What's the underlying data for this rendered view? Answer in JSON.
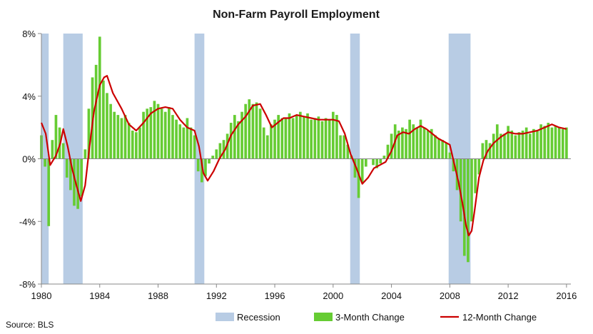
{
  "chart_data": {
    "type": "bar+line",
    "title": "Non-Farm Payroll Employment",
    "source": "Source: BLS",
    "xlim": [
      1980,
      2016.3
    ],
    "ylim": [
      -8,
      8
    ],
    "x_ticks": [
      1980,
      1984,
      1988,
      1992,
      1996,
      2000,
      2004,
      2008,
      2012,
      2016
    ],
    "y_ticks": [
      8,
      4,
      0,
      -4,
      -8
    ],
    "y_tick_labels": [
      "8%",
      "4%",
      "0%",
      "-4%",
      "-8%"
    ],
    "legend": [
      "Recession",
      "3-Month Change",
      "12-Month Change"
    ],
    "legend_position": "bottom-right",
    "colors": {
      "recession": "#b8cce4",
      "bars": "#66cc33",
      "line": "#cc0000"
    },
    "recessions": [
      [
        1980.0,
        1980.5
      ],
      [
        1981.5,
        1982.83
      ],
      [
        1990.5,
        1991.17
      ],
      [
        2001.17,
        2001.83
      ],
      [
        2007.92,
        2009.42
      ]
    ],
    "series": [
      {
        "name": "12-Month Change",
        "x": [
          1980.0,
          1980.3,
          1980.6,
          1981.0,
          1981.3,
          1981.5,
          1981.8,
          1982.1,
          1982.4,
          1982.7,
          1983.0,
          1983.3,
          1983.6,
          1984.0,
          1984.3,
          1984.5,
          1984.9,
          1985.5,
          1986.0,
          1986.5,
          1987.0,
          1987.5,
          1988.0,
          1988.5,
          1989.0,
          1989.5,
          1990.0,
          1990.5,
          1990.8,
          1991.1,
          1991.4,
          1991.8,
          1992.2,
          1992.6,
          1993.0,
          1993.5,
          1994.0,
          1994.5,
          1995.0,
          1995.4,
          1995.8,
          1996.2,
          1996.6,
          1997.0,
          1997.5,
          1998.0,
          1998.5,
          1999.0,
          1999.5,
          2000.0,
          2000.4,
          2000.8,
          2001.2,
          2001.6,
          2002.0,
          2002.4,
          2002.8,
          2003.2,
          2003.6,
          2004.0,
          2004.4,
          2004.8,
          2005.2,
          2005.6,
          2006.0,
          2006.4,
          2006.8,
          2007.2,
          2007.6,
          2008.0,
          2008.3,
          2008.6,
          2008.9,
          2009.1,
          2009.3,
          2009.5,
          2009.7,
          2010.0,
          2010.3,
          2010.6,
          2011.0,
          2011.5,
          2012.0,
          2012.5,
          2013.0,
          2013.5,
          2014.0,
          2014.5,
          2015.0,
          2015.5,
          2016.0
        ],
        "values": [
          2.3,
          1.6,
          -0.4,
          0.2,
          1.0,
          1.9,
          0.8,
          -0.6,
          -1.7,
          -2.7,
          -1.7,
          0.8,
          3.0,
          4.7,
          5.2,
          5.3,
          4.2,
          3.2,
          2.2,
          1.8,
          2.3,
          2.9,
          3.2,
          3.3,
          3.2,
          2.5,
          2.0,
          1.8,
          0.8,
          -0.9,
          -1.4,
          -0.8,
          0.0,
          0.6,
          1.5,
          2.2,
          2.7,
          3.4,
          3.5,
          2.8,
          2.0,
          2.3,
          2.6,
          2.6,
          2.8,
          2.7,
          2.6,
          2.5,
          2.5,
          2.5,
          2.4,
          1.6,
          0.3,
          -0.6,
          -1.6,
          -1.2,
          -0.6,
          -0.4,
          -0.2,
          0.5,
          1.5,
          1.7,
          1.6,
          1.9,
          2.1,
          1.9,
          1.6,
          1.3,
          1.1,
          0.9,
          -0.3,
          -1.5,
          -3.0,
          -4.2,
          -4.9,
          -4.6,
          -3.3,
          -1.2,
          -0.1,
          0.5,
          1.0,
          1.4,
          1.7,
          1.6,
          1.6,
          1.7,
          1.8,
          2.0,
          2.2,
          2.0,
          1.9
        ]
      },
      {
        "name": "3-Month Change",
        "x": [
          1980.0,
          1980.25,
          1980.5,
          1980.75,
          1981.0,
          1981.25,
          1981.5,
          1981.75,
          1982.0,
          1982.25,
          1982.5,
          1982.75,
          1983.0,
          1983.25,
          1983.5,
          1983.75,
          1984.0,
          1984.25,
          1984.5,
          1984.75,
          1985.0,
          1985.25,
          1985.5,
          1985.75,
          1986.0,
          1986.25,
          1986.5,
          1986.75,
          1987.0,
          1987.25,
          1987.5,
          1987.75,
          1988.0,
          1988.25,
          1988.5,
          1988.75,
          1989.0,
          1989.25,
          1989.5,
          1989.75,
          1990.0,
          1990.25,
          1990.5,
          1990.75,
          1991.0,
          1991.25,
          1991.5,
          1991.75,
          1992.0,
          1992.25,
          1992.5,
          1992.75,
          1993.0,
          1993.25,
          1993.5,
          1993.75,
          1994.0,
          1994.25,
          1994.5,
          1994.75,
          1995.0,
          1995.25,
          1995.5,
          1995.75,
          1996.0,
          1996.25,
          1996.5,
          1996.75,
          1997.0,
          1997.25,
          1997.5,
          1997.75,
          1998.0,
          1998.25,
          1998.5,
          1998.75,
          1999.0,
          1999.25,
          1999.5,
          1999.75,
          2000.0,
          2000.25,
          2000.5,
          2000.75,
          2001.0,
          2001.25,
          2001.5,
          2001.75,
          2002.0,
          2002.25,
          2002.5,
          2002.75,
          2003.0,
          2003.25,
          2003.5,
          2003.75,
          2004.0,
          2004.25,
          2004.5,
          2004.75,
          2005.0,
          2005.25,
          2005.5,
          2005.75,
          2006.0,
          2006.25,
          2006.5,
          2006.75,
          2007.0,
          2007.25,
          2007.5,
          2007.75,
          2008.0,
          2008.25,
          2008.5,
          2008.75,
          2009.0,
          2009.25,
          2009.5,
          2009.75,
          2010.0,
          2010.25,
          2010.5,
          2010.75,
          2011.0,
          2011.25,
          2011.5,
          2011.75,
          2012.0,
          2012.25,
          2012.5,
          2012.75,
          2013.0,
          2013.25,
          2013.5,
          2013.75,
          2014.0,
          2014.25,
          2014.5,
          2014.75,
          2015.0,
          2015.25,
          2015.5,
          2015.75,
          2016.0
        ],
        "values": [
          1.5,
          -0.5,
          -4.3,
          1.2,
          2.8,
          2.0,
          1.0,
          -1.2,
          -2.0,
          -3.0,
          -3.2,
          -2.4,
          0.6,
          3.2,
          5.2,
          6.0,
          7.8,
          5.0,
          4.2,
          3.5,
          3.0,
          2.8,
          2.6,
          2.8,
          2.3,
          1.8,
          1.7,
          2.0,
          3.0,
          3.2,
          3.3,
          3.7,
          3.5,
          3.2,
          3.0,
          3.3,
          2.8,
          2.5,
          2.2,
          2.0,
          2.6,
          2.0,
          1.5,
          -0.8,
          -1.5,
          -1.1,
          -0.3,
          0.2,
          0.6,
          1.0,
          1.2,
          1.6,
          2.3,
          2.8,
          2.4,
          3.0,
          3.5,
          3.8,
          3.5,
          3.6,
          3.2,
          2.0,
          1.5,
          2.2,
          2.5,
          2.8,
          2.6,
          2.6,
          2.9,
          2.6,
          2.8,
          3.0,
          2.7,
          2.9,
          2.5,
          2.6,
          2.7,
          2.4,
          2.6,
          2.5,
          3.0,
          2.8,
          1.5,
          1.5,
          0.9,
          0.2,
          -1.2,
          -2.5,
          -1.5,
          -0.5,
          0.0,
          -0.4,
          -0.6,
          -0.3,
          0.2,
          0.9,
          1.6,
          2.2,
          1.8,
          2.0,
          1.9,
          2.5,
          2.2,
          2.0,
          2.5,
          2.0,
          1.8,
          1.9,
          1.5,
          1.3,
          1.2,
          1.0,
          0.4,
          -0.8,
          -2.0,
          -4.0,
          -6.2,
          -6.6,
          -4.0,
          -2.2,
          -1.0,
          1.0,
          1.2,
          1.0,
          1.6,
          2.2,
          1.6,
          1.6,
          2.1,
          1.8,
          1.5,
          1.7,
          1.8,
          2.0,
          1.6,
          1.9,
          1.8,
          2.2,
          2.1,
          2.3,
          2.0,
          2.1,
          2.0,
          1.9,
          2.0
        ]
      }
    ]
  }
}
